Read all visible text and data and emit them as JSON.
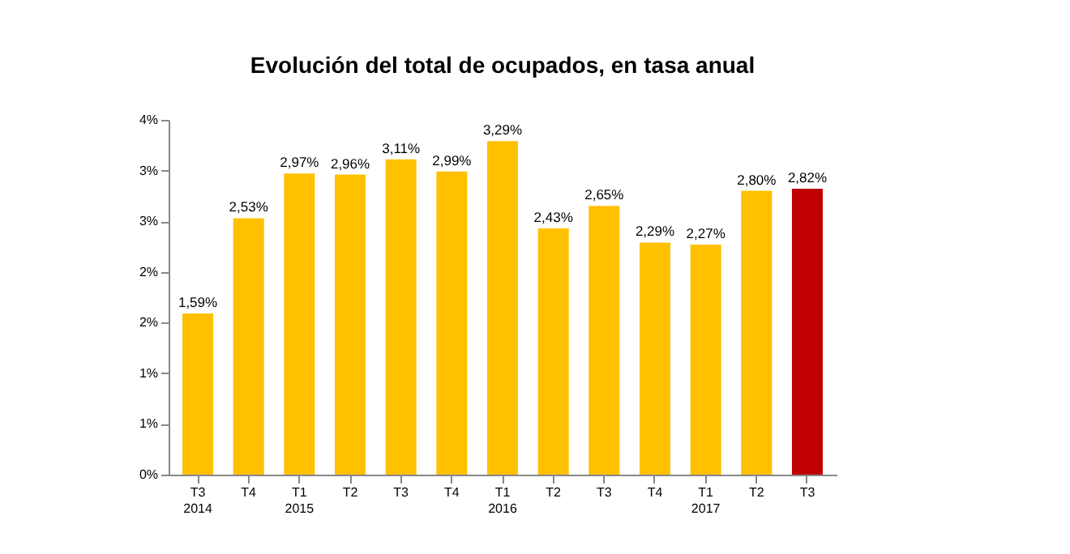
{
  "chart_data": {
    "type": "bar",
    "title": "Evolución del total de ocupados, en tasa anual",
    "categories": [
      "T3\n2014",
      "T4",
      "T1\n2015",
      "T2",
      "T3",
      "T4",
      "T1\n2016",
      "T2",
      "T3",
      "T4",
      "T1\n2017",
      "T2",
      "T3"
    ],
    "values": [
      1.59,
      2.53,
      2.97,
      2.96,
      3.11,
      2.99,
      3.29,
      2.43,
      2.65,
      2.29,
      2.27,
      2.8,
      2.82
    ],
    "value_labels": [
      "1,59%",
      "2,53%",
      "2,97%",
      "2,96%",
      "3,11%",
      "2,99%",
      "3,29%",
      "2,43%",
      "2,65%",
      "2,29%",
      "2,27%",
      "2,80%",
      "2,82%"
    ],
    "colors": [
      "#ffc000",
      "#ffc000",
      "#ffc000",
      "#ffc000",
      "#ffc000",
      "#ffc000",
      "#ffc000",
      "#ffc000",
      "#ffc000",
      "#ffc000",
      "#ffc000",
      "#ffc000",
      "#c00000"
    ],
    "ylim": [
      0,
      3.5
    ],
    "yticks": [
      {
        "value": 0,
        "label": "0%"
      },
      {
        "value": 0.5,
        "label": "1%"
      },
      {
        "value": 1,
        "label": "1%"
      },
      {
        "value": 1.5,
        "label": "2%"
      },
      {
        "value": 2,
        "label": "2%"
      },
      {
        "value": 2.5,
        "label": "3%"
      },
      {
        "value": 3,
        "label": "3%"
      },
      {
        "value": 3.5,
        "label": "4%"
      }
    ],
    "grid": false
  }
}
